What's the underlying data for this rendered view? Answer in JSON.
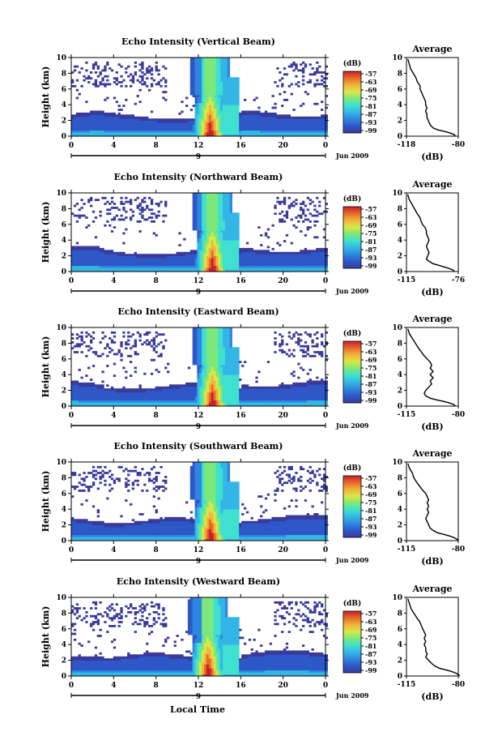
{
  "panel_titles": [
    "Echo Intensity (Vertical Beam)",
    "Echo Intensity (Northward Beam)",
    "Echo Intensity (Eastward Beam)",
    "Echo Intensity (Southward Beam)",
    "Echo Intensity (Westward Beam)"
  ],
  "average_title": "Average",
  "ylabel": "Height (km)",
  "xlabel": "Local Time",
  "date_label": "Jun 2009",
  "day_label": "9",
  "colorbar_unit": "(dB)",
  "average_xlabel": "(dB)",
  "colorbar_ticks": [
    "-57",
    "-63",
    "-69",
    "-75",
    "-81",
    "-87",
    "-93",
    "-99"
  ],
  "colors": {
    "scale": [
      "#3a3a9a",
      "#2e57c8",
      "#2f86e0",
      "#33b6e6",
      "#3fe0d0",
      "#7de87a",
      "#d8e84a",
      "#f2b43a",
      "#e86a2a",
      "#c8202a"
    ]
  },
  "chart_data": [
    {
      "type": "heatmap",
      "title": "Echo Intensity (Vertical Beam)",
      "xlabel": "",
      "ylabel": "Height (km)",
      "xlim": [
        0,
        24
      ],
      "ylim": [
        0,
        10
      ],
      "xticks": [
        "0",
        "4",
        "8",
        "12",
        "16",
        "20",
        "0"
      ],
      "yticks": [
        "0",
        "2",
        "4",
        "6",
        "8",
        "10"
      ],
      "colorbar": {
        "unit": "(dB)",
        "ticks": [
          "-57",
          "-63",
          "-69",
          "-75",
          "-81",
          "-87",
          "-93",
          "-99"
        ]
      },
      "average_profile": {
        "title": "Average",
        "xlabel": "(dB)",
        "xticks": [
          "-118",
          "-80"
        ],
        "xlim": [
          -118,
          -80
        ],
        "yticks": [
          "0",
          "2",
          "4",
          "6",
          "8",
          "10"
        ],
        "x": [
          -117,
          -116,
          -115,
          -113,
          -111,
          -110,
          -108,
          -108,
          -107,
          -106,
          -105,
          -104,
          -104,
          -103,
          -104,
          -103,
          -103,
          -102,
          -101,
          -100,
          -98,
          -95,
          -90,
          -86,
          -83,
          -82
        ],
        "y": [
          9.8,
          9.2,
          8.6,
          8.0,
          7.4,
          6.9,
          6.4,
          6.0,
          5.6,
          5.2,
          4.8,
          4.4,
          4.0,
          3.6,
          3.2,
          2.8,
          2.4,
          2.0,
          1.6,
          1.3,
          1.0,
          0.8,
          0.6,
          0.4,
          0.2,
          0.0
        ]
      }
    },
    {
      "type": "heatmap",
      "title": "Echo Intensity (Northward Beam)",
      "xlabel": "",
      "ylabel": "Height (km)",
      "xlim": [
        0,
        24
      ],
      "ylim": [
        0,
        10
      ],
      "xticks": [
        "0",
        "4",
        "8",
        "12",
        "16",
        "20",
        "0"
      ],
      "yticks": [
        "0",
        "2",
        "4",
        "6",
        "8",
        "10"
      ],
      "colorbar": {
        "unit": "(dB)",
        "ticks": [
          "-57",
          "-63",
          "-69",
          "-75",
          "-81",
          "-87",
          "-93",
          "-99"
        ]
      },
      "average_profile": {
        "title": "Average",
        "xlabel": "(dB)",
        "xticks": [
          "-115",
          "-76"
        ],
        "xlim": [
          -115,
          -76
        ],
        "yticks": [
          "0",
          "2",
          "4",
          "6",
          "8",
          "10"
        ],
        "x": [
          -114,
          -113,
          -111,
          -109,
          -107,
          -105,
          -104,
          -103,
          -101,
          -100,
          -100,
          -99,
          -98,
          -99,
          -100,
          -99,
          -98,
          -99,
          -100,
          -98,
          -95,
          -91,
          -87,
          -83,
          -80,
          -79
        ],
        "y": [
          9.8,
          9.2,
          8.6,
          8.0,
          7.4,
          6.9,
          6.4,
          6.0,
          5.6,
          5.2,
          4.8,
          4.4,
          4.0,
          3.6,
          3.2,
          2.8,
          2.4,
          2.0,
          1.6,
          1.3,
          1.0,
          0.8,
          0.6,
          0.4,
          0.2,
          0.0
        ]
      }
    },
    {
      "type": "heatmap",
      "title": "Echo Intensity (Eastward Beam)",
      "xlabel": "",
      "ylabel": "Height (km)",
      "xlim": [
        0,
        24
      ],
      "ylim": [
        0,
        10
      ],
      "xticks": [
        "0",
        "4",
        "8",
        "12",
        "16",
        "20",
        "0"
      ],
      "yticks": [
        "0",
        "2",
        "4",
        "6",
        "8",
        "10"
      ],
      "colorbar": {
        "unit": "(dB)",
        "ticks": [
          "-57",
          "-63",
          "-69",
          "-75",
          "-81",
          "-87",
          "-93",
          "-99"
        ]
      },
      "average_profile": {
        "title": "Average",
        "xlabel": "(dB)",
        "xticks": [
          "-115",
          "-80"
        ],
        "xlim": [
          -115,
          -80
        ],
        "yticks": [
          "0",
          "2",
          "4",
          "6",
          "8",
          "10"
        ],
        "x": [
          -114,
          -113,
          -111,
          -109,
          -107,
          -105,
          -103,
          -101,
          -99,
          -98,
          -99,
          -97,
          -99,
          -97,
          -99,
          -98,
          -100,
          -102,
          -103,
          -102,
          -99,
          -95,
          -90,
          -86,
          -83,
          -82
        ],
        "y": [
          9.8,
          9.2,
          8.6,
          8.0,
          7.4,
          6.9,
          6.4,
          6.0,
          5.6,
          5.2,
          4.8,
          4.4,
          4.0,
          3.6,
          3.2,
          2.8,
          2.4,
          2.0,
          1.6,
          1.3,
          1.0,
          0.8,
          0.6,
          0.4,
          0.2,
          0.0
        ]
      }
    },
    {
      "type": "heatmap",
      "title": "Echo Intensity (Southward Beam)",
      "xlabel": "",
      "ylabel": "Height (km)",
      "xlim": [
        0,
        24
      ],
      "ylim": [
        0,
        10
      ],
      "xticks": [
        "0",
        "4",
        "8",
        "12",
        "16",
        "20",
        "0"
      ],
      "yticks": [
        "0",
        "2",
        "4",
        "6",
        "8",
        "10"
      ],
      "colorbar": {
        "unit": "(dB)",
        "ticks": [
          "-57",
          "-63",
          "-69",
          "-75",
          "-81",
          "-87",
          "-93",
          "-99"
        ]
      },
      "average_profile": {
        "title": "Average",
        "xlabel": "(dB)",
        "xticks": [
          "-115",
          "-80"
        ],
        "xlim": [
          -115,
          -80
        ],
        "yticks": [
          "0",
          "2",
          "4",
          "6",
          "8",
          "10"
        ],
        "x": [
          -114,
          -113,
          -111,
          -110,
          -108,
          -106,
          -104,
          -102,
          -101,
          -100,
          -101,
          -100,
          -101,
          -100,
          -101,
          -102,
          -101,
          -100,
          -99,
          -97,
          -94,
          -90,
          -86,
          -83,
          -81,
          -80
        ],
        "y": [
          9.8,
          9.2,
          8.6,
          8.0,
          7.4,
          6.9,
          6.4,
          6.0,
          5.6,
          5.2,
          4.8,
          4.4,
          4.0,
          3.6,
          3.2,
          2.8,
          2.4,
          2.0,
          1.6,
          1.3,
          1.0,
          0.8,
          0.6,
          0.4,
          0.2,
          0.0
        ]
      }
    },
    {
      "type": "heatmap",
      "title": "Echo Intensity (Westward Beam)",
      "xlabel": "Local Time",
      "ylabel": "Height (km)",
      "xlim": [
        0,
        24
      ],
      "ylim": [
        0,
        10
      ],
      "xticks": [
        "0",
        "4",
        "8",
        "12",
        "16",
        "20",
        "0"
      ],
      "yticks": [
        "0",
        "2",
        "4",
        "6",
        "8",
        "10"
      ],
      "colorbar": {
        "unit": "(dB)",
        "ticks": [
          "-57",
          "-63",
          "-69",
          "-75",
          "-81",
          "-87",
          "-93",
          "-99"
        ]
      },
      "average_profile": {
        "title": "Average",
        "xlabel": "(dB)",
        "xticks": [
          "-115",
          "-80"
        ],
        "xlim": [
          -115,
          -80
        ],
        "yticks": [
          "0",
          "2",
          "4",
          "6",
          "8",
          "10"
        ],
        "x": [
          -114,
          -113,
          -112,
          -110,
          -108,
          -106,
          -105,
          -104,
          -103,
          -102,
          -103,
          -102,
          -103,
          -102,
          -102,
          -101,
          -102,
          -100,
          -98,
          -96,
          -93,
          -89,
          -85,
          -82,
          -80,
          -79
        ],
        "y": [
          9.8,
          9.2,
          8.6,
          8.0,
          7.4,
          6.9,
          6.4,
          6.0,
          5.6,
          5.2,
          4.8,
          4.4,
          4.0,
          3.6,
          3.2,
          2.8,
          2.4,
          2.0,
          1.6,
          1.3,
          1.0,
          0.8,
          0.6,
          0.4,
          0.2,
          0.0
        ]
      }
    }
  ]
}
